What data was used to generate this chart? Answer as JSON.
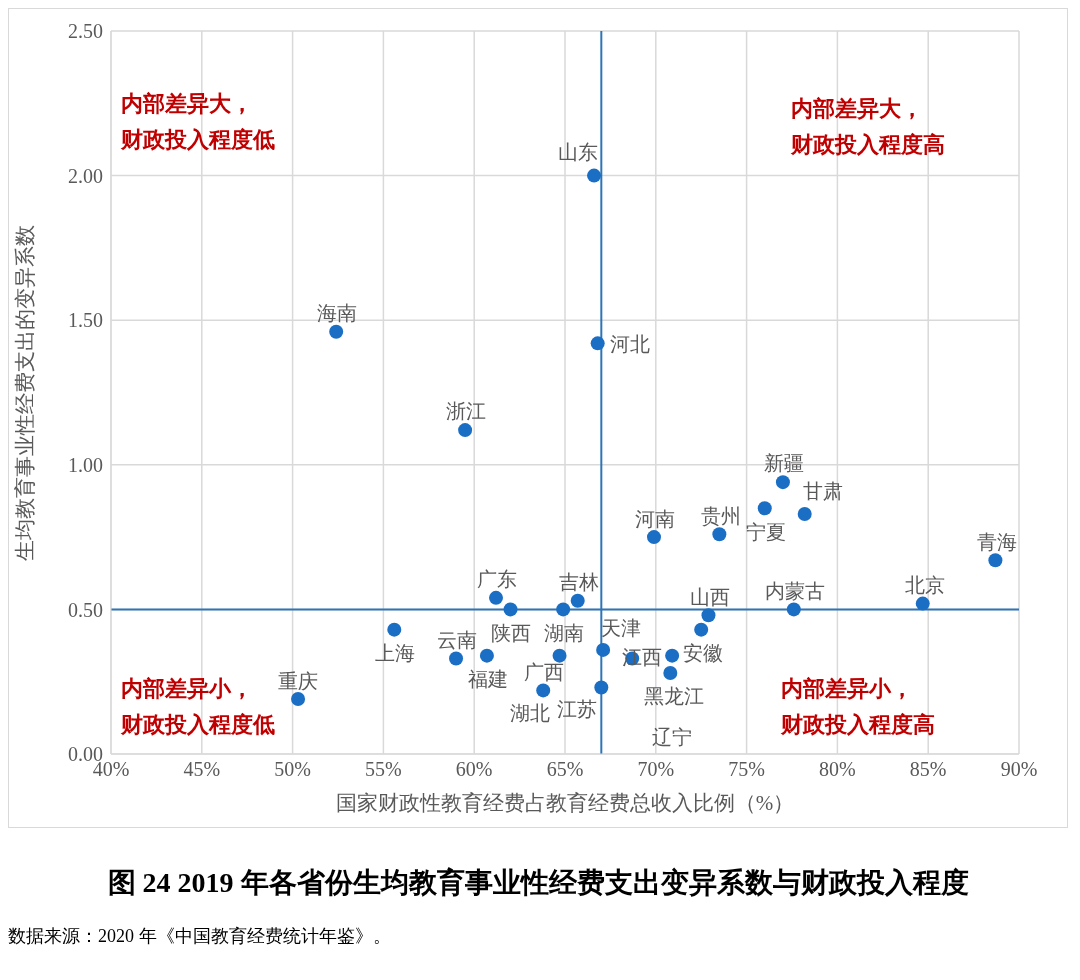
{
  "chart_data": {
    "type": "scatter",
    "title": "图 24 2019 年各省份生均教育事业性经费支出变异系数与财政投入程度",
    "xlabel": "国家财政性教育经费占教育经费总收入比例（%）",
    "ylabel": "生均教育事业性经费支出的变异系数",
    "x": [
      66.6,
      52.4,
      66.8,
      59.5,
      77.0,
      76.0,
      78.2,
      69.9,
      73.5,
      88.7,
      84.7,
      77.6,
      72.9,
      72.5,
      61.2,
      62.0,
      64.9,
      65.7,
      55.6,
      59.0,
      60.7,
      64.7,
      67.1,
      68.7,
      70.9,
      70.8,
      67.0,
      63.8,
      50.3
    ],
    "series": [
      {
        "color": "#1a6ec4",
        "values": [
          2.0,
          1.46,
          1.42,
          1.12,
          0.94,
          0.85,
          0.83,
          0.75,
          0.76,
          0.67,
          0.52,
          0.5,
          0.48,
          0.43,
          0.54,
          0.5,
          0.5,
          0.53,
          0.43,
          0.33,
          0.34,
          0.34,
          0.36,
          0.33,
          0.34,
          0.28,
          0.23,
          0.22,
          0.19
        ]
      }
    ],
    "marker": "circle",
    "grid": true,
    "legend": false,
    "xlim": [
      40,
      90
    ],
    "xticks": [
      {
        "value": 40,
        "label": "40%"
      },
      {
        "value": 45,
        "label": "45%"
      },
      {
        "value": 50,
        "label": "50%"
      },
      {
        "value": 55,
        "label": "55%"
      },
      {
        "value": 60,
        "label": "60%"
      },
      {
        "value": 65,
        "label": "65%"
      },
      {
        "value": 70,
        "label": "70%"
      },
      {
        "value": 75,
        "label": "75%"
      },
      {
        "value": 80,
        "label": "80%"
      },
      {
        "value": 85,
        "label": "85%"
      },
      {
        "value": 90,
        "label": "90%"
      }
    ],
    "ylim": [
      0,
      2.5
    ],
    "yticks": [
      {
        "value": 0,
        "label": "0.00"
      },
      {
        "value": 0.5,
        "label": "0.50"
      },
      {
        "value": 1,
        "label": "1.00"
      },
      {
        "value": 1.5,
        "label": "1.50"
      },
      {
        "value": 2,
        "label": "2.00"
      },
      {
        "value": 2.5,
        "label": "2.50"
      }
    ],
    "ref_lines": [
      {
        "axis": "x",
        "value": 67.0,
        "color": "#2e75b6"
      },
      {
        "axis": "y",
        "value": 0.5,
        "color": "#2e75b6"
      }
    ],
    "annotations": [
      "内部差异大，财政投入程度低",
      "内部差异大，财政投入程度高",
      "内部差异小，财政投入程度低",
      "内部差异小，财政投入程度高",
      "数据来源：2020 年《中国教育经费统计年鉴》。",
      {
        "text": "山东",
        "x": 66.6,
        "y": 2.0
      },
      {
        "text": "海南",
        "x": 52.4,
        "y": 1.46
      },
      {
        "text": "河北",
        "x": 66.8,
        "y": 1.42
      },
      {
        "text": "浙江",
        "x": 59.5,
        "y": 1.12
      },
      {
        "text": "新疆",
        "x": 77.0,
        "y": 0.94
      },
      {
        "text": "宁夏",
        "x": 76.0,
        "y": 0.85
      },
      {
        "text": "甘肃",
        "x": 78.2,
        "y": 0.83
      },
      {
        "text": "河南",
        "x": 69.9,
        "y": 0.75
      },
      {
        "text": "贵州",
        "x": 73.5,
        "y": 0.76
      },
      {
        "text": "青海",
        "x": 88.7,
        "y": 0.67
      },
      {
        "text": "北京",
        "x": 84.7,
        "y": 0.52
      },
      {
        "text": "内蒙古",
        "x": 77.6,
        "y": 0.5
      },
      {
        "text": "山西",
        "x": 72.9,
        "y": 0.48
      },
      {
        "text": "安徽",
        "x": 72.5,
        "y": 0.43
      },
      {
        "text": "广东",
        "x": 61.2,
        "y": 0.54
      },
      {
        "text": "陕西",
        "x": 62.0,
        "y": 0.5
      },
      {
        "text": "湖南",
        "x": 64.9,
        "y": 0.5
      },
      {
        "text": "吉林",
        "x": 65.7,
        "y": 0.53
      },
      {
        "text": "上海",
        "x": 55.6,
        "y": 0.43
      },
      {
        "text": "云南",
        "x": 59.0,
        "y": 0.33
      },
      {
        "text": "福建",
        "x": 60.7,
        "y": 0.34
      },
      {
        "text": "湖北",
        "x": 64.7,
        "y": 0.34
      },
      {
        "text": "天津",
        "x": 67.1,
        "y": 0.36
      },
      {
        "text": "黑龙江",
        "x": 68.7,
        "y": 0.33
      },
      {
        "text": "江西",
        "x": 70.9,
        "y": 0.34
      },
      {
        "text": "辽宁",
        "x": 70.8,
        "y": 0.28
      },
      {
        "text": "江苏",
        "x": 67.0,
        "y": 0.23
      },
      {
        "text": "广西",
        "x": 63.8,
        "y": 0.22
      },
      {
        "text": "重庆",
        "x": 50.3,
        "y": 0.19
      }
    ]
  }
}
